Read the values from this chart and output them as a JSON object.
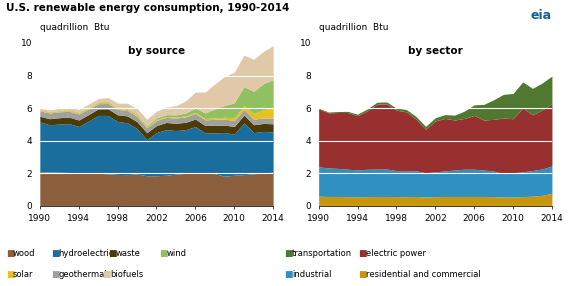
{
  "title": "U.S. renewable energy consumption, 1990-2014",
  "ylabel": "quadrillion  Btu",
  "years": [
    1990,
    1991,
    1992,
    1993,
    1994,
    1995,
    1996,
    1997,
    1998,
    1999,
    2000,
    2001,
    2002,
    2003,
    2004,
    2005,
    2006,
    2007,
    2008,
    2009,
    2010,
    2011,
    2012,
    2013,
    2014
  ],
  "source": {
    "wood": [
      2.1,
      2.08,
      2.07,
      2.05,
      2.02,
      2.0,
      2.0,
      1.97,
      1.93,
      1.92,
      1.96,
      1.85,
      1.85,
      1.88,
      1.95,
      2.0,
      2.02,
      2.02,
      1.98,
      1.82,
      1.88,
      1.92,
      1.97,
      2.02,
      2.07
    ],
    "hydroelectric": [
      3.05,
      2.9,
      2.95,
      3.0,
      2.85,
      3.2,
      3.55,
      3.58,
      3.25,
      3.18,
      2.78,
      2.22,
      2.65,
      2.8,
      2.67,
      2.68,
      2.85,
      2.45,
      2.5,
      2.68,
      2.52,
      3.17,
      2.53,
      2.55,
      2.47
    ],
    "waste": [
      0.35,
      0.37,
      0.39,
      0.4,
      0.4,
      0.4,
      0.4,
      0.41,
      0.41,
      0.42,
      0.43,
      0.42,
      0.43,
      0.44,
      0.45,
      0.45,
      0.46,
      0.46,
      0.47,
      0.46,
      0.47,
      0.48,
      0.48,
      0.49,
      0.5
    ],
    "geothermal": [
      0.33,
      0.35,
      0.36,
      0.36,
      0.37,
      0.33,
      0.32,
      0.33,
      0.33,
      0.33,
      0.32,
      0.31,
      0.31,
      0.31,
      0.32,
      0.33,
      0.34,
      0.35,
      0.36,
      0.37,
      0.37,
      0.35,
      0.34,
      0.34,
      0.33
    ],
    "solar": [
      0.06,
      0.06,
      0.06,
      0.06,
      0.07,
      0.07,
      0.07,
      0.07,
      0.07,
      0.07,
      0.07,
      0.07,
      0.06,
      0.06,
      0.06,
      0.06,
      0.07,
      0.08,
      0.09,
      0.11,
      0.16,
      0.23,
      0.35,
      0.5,
      0.65
    ],
    "wind": [
      0.03,
      0.03,
      0.03,
      0.04,
      0.04,
      0.04,
      0.04,
      0.04,
      0.04,
      0.05,
      0.06,
      0.07,
      0.1,
      0.11,
      0.14,
      0.18,
      0.26,
      0.34,
      0.55,
      0.72,
      0.92,
      1.17,
      1.36,
      1.6,
      1.73
    ],
    "biofuels": [
      0.08,
      0.1,
      0.12,
      0.14,
      0.17,
      0.2,
      0.2,
      0.25,
      0.28,
      0.33,
      0.36,
      0.38,
      0.41,
      0.46,
      0.56,
      0.75,
      0.98,
      1.28,
      1.53,
      1.78,
      1.88,
      1.93,
      1.96,
      1.98,
      2.08
    ]
  },
  "source_colors": {
    "wood": "#8B5E3C",
    "hydroelectric": "#1A6E9E",
    "waste": "#4A3B08",
    "geothermal": "#A0A0A0",
    "solar": "#E8C020",
    "wind": "#90C060",
    "biofuels": "#E0C8A8"
  },
  "source_order": [
    "wood",
    "hydroelectric",
    "waste",
    "geothermal",
    "solar",
    "wind",
    "biofuels"
  ],
  "sector": {
    "residential_commercial": [
      0.6,
      0.58,
      0.58,
      0.57,
      0.56,
      0.57,
      0.58,
      0.58,
      0.57,
      0.57,
      0.58,
      0.55,
      0.57,
      0.58,
      0.58,
      0.58,
      0.58,
      0.58,
      0.57,
      0.55,
      0.55,
      0.57,
      0.6,
      0.65,
      0.78
    ],
    "industrial": [
      1.8,
      1.75,
      1.72,
      1.68,
      1.65,
      1.68,
      1.68,
      1.68,
      1.6,
      1.58,
      1.58,
      1.48,
      1.52,
      1.57,
      1.62,
      1.67,
      1.67,
      1.62,
      1.57,
      1.42,
      1.48,
      1.52,
      1.57,
      1.62,
      1.67
    ],
    "electric_power": [
      3.55,
      3.38,
      3.43,
      3.48,
      3.33,
      3.58,
      3.98,
      4.0,
      3.7,
      3.62,
      3.17,
      2.67,
      3.12,
      3.22,
      3.07,
      3.12,
      3.3,
      3.07,
      3.17,
      3.42,
      3.32,
      3.92,
      3.42,
      3.62,
      3.82
    ],
    "transportation": [
      0.05,
      0.05,
      0.06,
      0.07,
      0.09,
      0.12,
      0.12,
      0.12,
      0.13,
      0.15,
      0.17,
      0.18,
      0.2,
      0.23,
      0.3,
      0.45,
      0.65,
      0.96,
      1.2,
      1.45,
      1.55,
      1.6,
      1.62,
      1.65,
      1.7
    ]
  },
  "sector_colors": {
    "residential_commercial": "#C8960C",
    "industrial": "#3090C0",
    "electric_power": "#983030",
    "transportation": "#507830"
  },
  "sector_order": [
    "residential_commercial",
    "industrial",
    "electric_power",
    "transportation"
  ],
  "ylim": [
    0,
    10
  ],
  "yticks": [
    0,
    2,
    4,
    6,
    8,
    10
  ]
}
